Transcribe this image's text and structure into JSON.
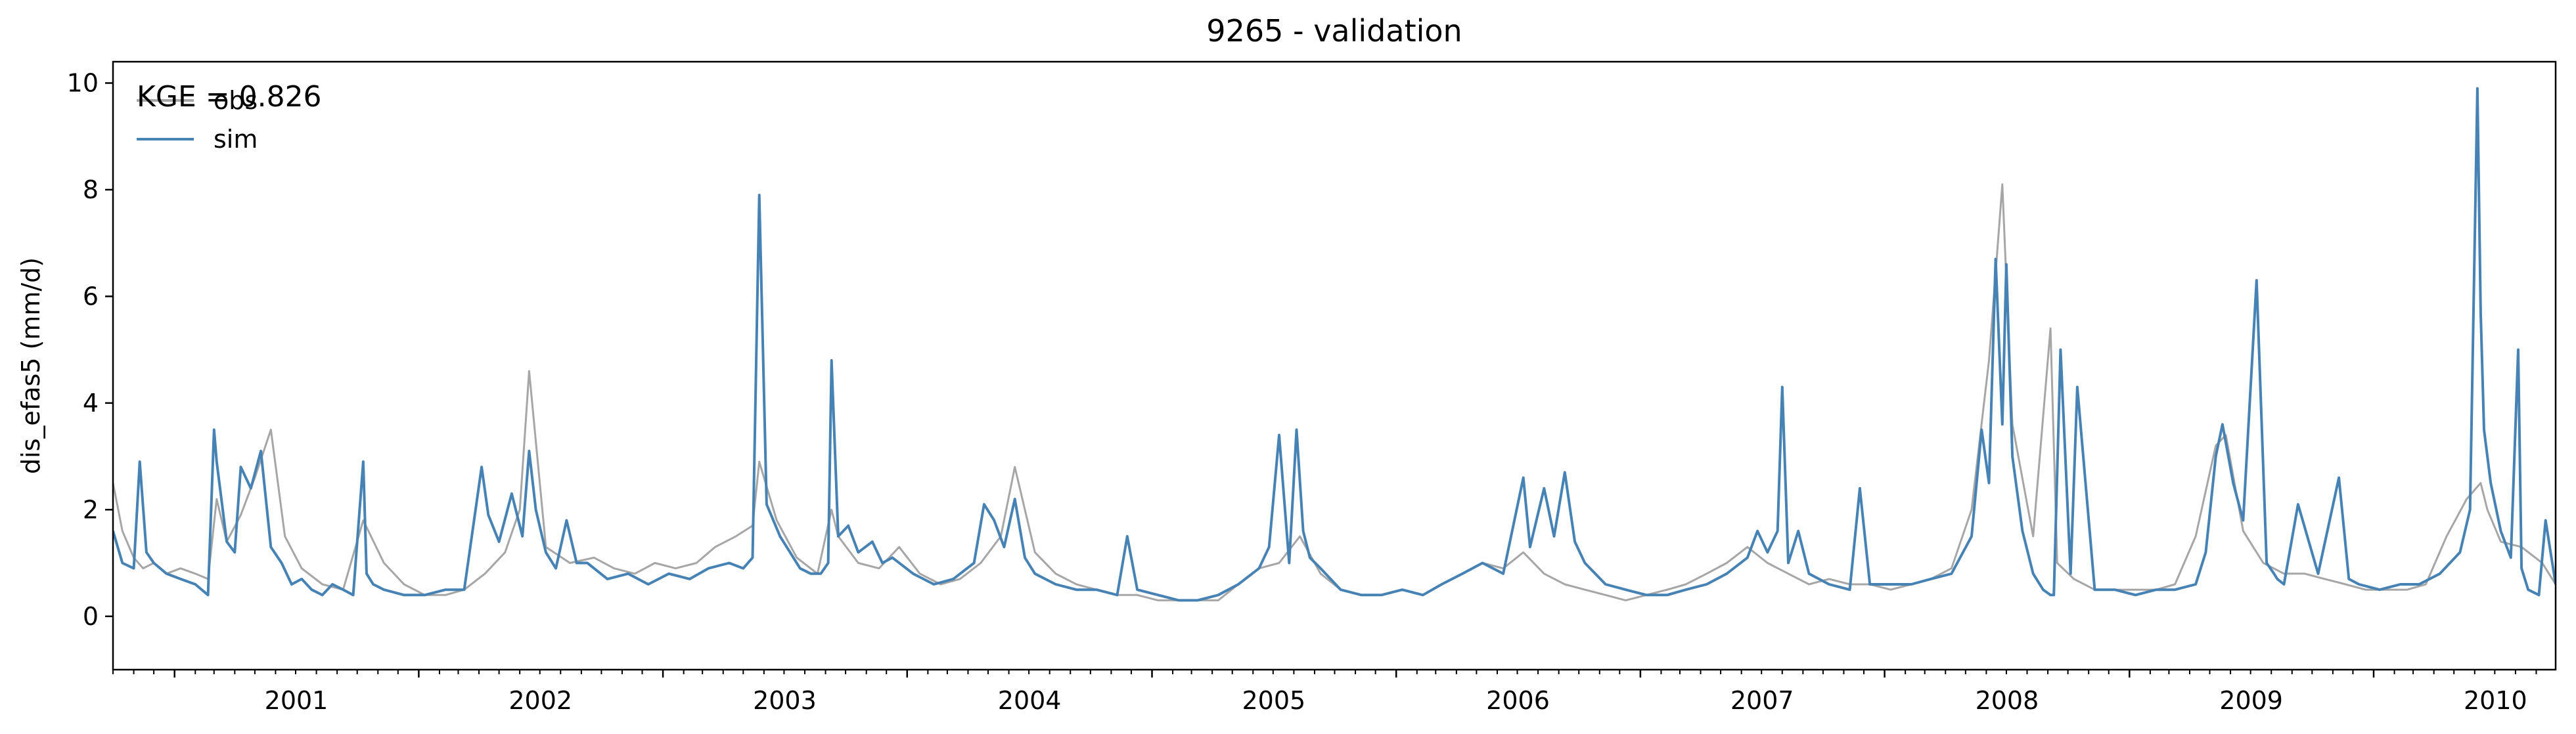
{
  "chart_data": {
    "type": "line",
    "title": "9265 - validation",
    "xlabel": "",
    "ylabel": "dis_efas5 (mm/d)",
    "xlim": [
      "2000-10-01",
      "2010-09-30"
    ],
    "ylim": [
      -1,
      10.4
    ],
    "yticks": [
      0,
      2,
      4,
      6,
      8,
      10
    ],
    "ytick_labels": [
      "0",
      "2",
      "4",
      "6",
      "8",
      "10"
    ],
    "xticks": [
      "2001",
      "2002",
      "2003",
      "2004",
      "2005",
      "2006",
      "2007",
      "2008",
      "2009",
      "2010"
    ],
    "grid": false,
    "legend": {
      "position": "top-left"
    },
    "annotation": "KGE = 0.826",
    "series": [
      {
        "name": "obs",
        "color": "#a6a6a6",
        "x": [
          "2000-10-01",
          "2000-10-15",
          "2000-11-01",
          "2000-11-15",
          "2000-12-01",
          "2000-12-20",
          "2001-01-10",
          "2001-02-01",
          "2001-02-20",
          "2001-03-05",
          "2001-03-20",
          "2001-04-10",
          "2001-05-01",
          "2001-05-25",
          "2001-06-15",
          "2001-07-10",
          "2001-08-10",
          "2001-09-10",
          "2001-10-10",
          "2001-11-10",
          "2001-12-10",
          "2002-01-10",
          "2002-02-10",
          "2002-03-10",
          "2002-04-10",
          "2002-05-10",
          "2002-06-01",
          "2002-06-15",
          "2002-07-10",
          "2002-08-15",
          "2002-09-20",
          "2002-10-20",
          "2002-11-20",
          "2002-12-20",
          "2003-01-20",
          "2003-02-20",
          "2003-03-20",
          "2003-04-20",
          "2003-05-15",
          "2003-05-25",
          "2003-06-20",
          "2003-07-20",
          "2003-08-20",
          "2003-09-10",
          "2003-09-20",
          "2003-10-20",
          "2003-11-20",
          "2003-12-20",
          "2004-01-20",
          "2004-02-20",
          "2004-03-20",
          "2004-04-20",
          "2004-05-20",
          "2004-06-10",
          "2004-07-10",
          "2004-08-10",
          "2004-09-10",
          "2004-10-10",
          "2004-11-10",
          "2004-12-10",
          "2005-01-10",
          "2005-02-10",
          "2005-03-10",
          "2005-04-10",
          "2005-05-10",
          "2005-06-10",
          "2005-07-10",
          "2005-08-10",
          "2005-09-10",
          "2005-10-10",
          "2005-11-10",
          "2005-12-10",
          "2006-01-10",
          "2006-02-10",
          "2006-03-10",
          "2006-04-10",
          "2006-05-10",
          "2006-06-10",
          "2006-07-10",
          "2006-08-10",
          "2006-09-10",
          "2006-10-10",
          "2006-11-10",
          "2006-12-10",
          "2007-01-10",
          "2007-02-10",
          "2007-03-10",
          "2007-04-10",
          "2007-05-10",
          "2007-06-10",
          "2007-07-10",
          "2007-08-10",
          "2007-09-10",
          "2007-10-10",
          "2007-11-10",
          "2007-12-10",
          "2008-01-10",
          "2008-02-10",
          "2008-03-10",
          "2008-04-10",
          "2008-05-10",
          "2008-06-05",
          "2008-06-25",
          "2008-07-10",
          "2008-08-10",
          "2008-09-05",
          "2008-09-15",
          "2008-10-10",
          "2008-11-10",
          "2008-12-10",
          "2009-01-10",
          "2009-02-10",
          "2009-03-10",
          "2009-04-10",
          "2009-05-10",
          "2009-05-25",
          "2009-06-20",
          "2009-07-20",
          "2009-08-20",
          "2009-09-20",
          "2009-10-20",
          "2009-11-20",
          "2009-12-20",
          "2010-01-20",
          "2010-02-20",
          "2010-03-20",
          "2010-04-20",
          "2010-05-20",
          "2010-06-10",
          "2010-06-20",
          "2010-07-10",
          "2010-08-10",
          "2010-09-10",
          "2010-09-30"
        ],
        "y": [
          2.5,
          1.6,
          1.1,
          0.9,
          1.0,
          0.8,
          0.9,
          0.8,
          0.7,
          2.2,
          1.4,
          1.9,
          2.6,
          3.5,
          1.5,
          0.9,
          0.6,
          0.5,
          1.8,
          1.0,
          0.6,
          0.4,
          0.4,
          0.5,
          0.8,
          1.2,
          2.0,
          4.6,
          1.3,
          1.0,
          1.1,
          0.9,
          0.8,
          1.0,
          0.9,
          1.0,
          1.3,
          1.5,
          1.7,
          2.9,
          1.8,
          1.1,
          0.8,
          2.0,
          1.5,
          1.0,
          0.9,
          1.3,
          0.8,
          0.6,
          0.7,
          1.0,
          1.5,
          2.8,
          1.2,
          0.8,
          0.6,
          0.5,
          0.4,
          0.4,
          0.3,
          0.3,
          0.3,
          0.3,
          0.6,
          0.9,
          1.0,
          1.5,
          0.8,
          0.5,
          0.4,
          0.4,
          0.5,
          0.4,
          0.6,
          0.8,
          1.0,
          0.9,
          1.2,
          0.8,
          0.6,
          0.5,
          0.4,
          0.3,
          0.4,
          0.5,
          0.6,
          0.8,
          1.0,
          1.3,
          1.0,
          0.8,
          0.6,
          0.7,
          0.6,
          0.6,
          0.5,
          0.6,
          0.7,
          0.9,
          2.0,
          4.8,
          8.1,
          3.6,
          1.5,
          5.4,
          1.0,
          0.7,
          0.5,
          0.5,
          0.5,
          0.5,
          0.6,
          1.5,
          3.2,
          3.4,
          1.6,
          1.0,
          0.8,
          0.8,
          0.7,
          0.6,
          0.5,
          0.5,
          0.5,
          0.6,
          1.5,
          2.2,
          2.5,
          2.0,
          1.4,
          1.3,
          1.0,
          0.6
        ]
      },
      {
        "name": "sim",
        "color": "#4682b4",
        "x": [
          "2000-10-01",
          "2000-10-15",
          "2000-11-01",
          "2000-11-10",
          "2000-11-20",
          "2000-12-01",
          "2000-12-20",
          "2001-01-10",
          "2001-02-01",
          "2001-02-20",
          "2001-03-01",
          "2001-03-05",
          "2001-03-12",
          "2001-03-20",
          "2001-04-01",
          "2001-04-10",
          "2001-04-25",
          "2001-05-10",
          "2001-05-25",
          "2001-06-10",
          "2001-06-25",
          "2001-07-10",
          "2001-07-25",
          "2001-08-10",
          "2001-08-25",
          "2001-09-10",
          "2001-09-25",
          "2001-10-10",
          "2001-10-15",
          "2001-10-25",
          "2001-11-10",
          "2001-12-10",
          "2002-01-10",
          "2002-02-10",
          "2002-03-10",
          "2002-04-05",
          "2002-04-15",
          "2002-05-01",
          "2002-05-20",
          "2002-06-05",
          "2002-06-15",
          "2002-06-25",
          "2002-07-10",
          "2002-07-25",
          "2002-08-10",
          "2002-08-25",
          "2002-09-10",
          "2002-10-10",
          "2002-11-10",
          "2002-12-10",
          "2003-01-10",
          "2003-02-10",
          "2003-03-10",
          "2003-04-10",
          "2003-05-01",
          "2003-05-15",
          "2003-05-25",
          "2003-06-05",
          "2003-06-25",
          "2003-07-10",
          "2003-07-25",
          "2003-08-10",
          "2003-08-25",
          "2003-09-05",
          "2003-09-10",
          "2003-09-20",
          "2003-10-05",
          "2003-10-20",
          "2003-11-10",
          "2003-11-25",
          "2003-12-10",
          "2004-01-10",
          "2004-02-10",
          "2004-03-10",
          "2004-04-10",
          "2004-04-25",
          "2004-05-10",
          "2004-05-25",
          "2004-06-10",
          "2004-06-25",
          "2004-07-10",
          "2004-08-10",
          "2004-09-10",
          "2004-10-10",
          "2004-11-10",
          "2004-11-25",
          "2004-12-10",
          "2005-01-10",
          "2005-02-10",
          "2005-03-10",
          "2005-04-10",
          "2005-05-10",
          "2005-06-10",
          "2005-06-25",
          "2005-07-10",
          "2005-07-25",
          "2005-08-05",
          "2005-08-15",
          "2005-08-25",
          "2005-09-10",
          "2005-10-10",
          "2005-11-10",
          "2005-12-10",
          "2006-01-10",
          "2006-02-10",
          "2006-03-10",
          "2006-04-10",
          "2006-05-10",
          "2006-06-10",
          "2006-07-10",
          "2006-07-20",
          "2006-08-10",
          "2006-08-25",
          "2006-09-10",
          "2006-09-25",
          "2006-10-10",
          "2006-11-10",
          "2006-12-10",
          "2007-01-10",
          "2007-02-10",
          "2007-03-10",
          "2007-04-10",
          "2007-05-10",
          "2007-06-10",
          "2007-06-25",
          "2007-07-10",
          "2007-07-25",
          "2007-08-01",
          "2007-08-10",
          "2007-08-25",
          "2007-09-10",
          "2007-10-10",
          "2007-11-10",
          "2007-11-25",
          "2007-12-10",
          "2008-01-10",
          "2008-02-10",
          "2008-03-10",
          "2008-04-10",
          "2008-05-10",
          "2008-05-25",
          "2008-06-05",
          "2008-06-15",
          "2008-06-25",
          "2008-07-01",
          "2008-07-10",
          "2008-07-25",
          "2008-08-10",
          "2008-08-25",
          "2008-09-05",
          "2008-09-10",
          "2008-09-20",
          "2008-10-05",
          "2008-10-15",
          "2008-11-10",
          "2008-12-10",
          "2009-01-10",
          "2009-02-10",
          "2009-03-10",
          "2009-04-10",
          "2009-04-25",
          "2009-05-10",
          "2009-05-20",
          "2009-06-05",
          "2009-06-20",
          "2009-07-10",
          "2009-07-25",
          "2009-08-05",
          "2009-08-10",
          "2009-08-20",
          "2009-09-10",
          "2009-10-10",
          "2009-11-10",
          "2009-11-25",
          "2009-12-10",
          "2010-01-10",
          "2010-02-10",
          "2010-03-10",
          "2010-04-10",
          "2010-05-10",
          "2010-05-25",
          "2010-06-05",
          "2010-06-10",
          "2010-06-15",
          "2010-06-25",
          "2010-07-10",
          "2010-07-25",
          "2010-08-05",
          "2010-08-10",
          "2010-08-20",
          "2010-09-05",
          "2010-09-15",
          "2010-09-30"
        ],
        "y": [
          1.6,
          1.0,
          0.9,
          2.9,
          1.2,
          1.0,
          0.8,
          0.7,
          0.6,
          0.4,
          3.5,
          2.9,
          2.2,
          1.4,
          1.2,
          2.8,
          2.4,
          3.1,
          1.3,
          1.0,
          0.6,
          0.7,
          0.5,
          0.4,
          0.6,
          0.5,
          0.4,
          2.9,
          0.8,
          0.6,
          0.5,
          0.4,
          0.4,
          0.5,
          0.5,
          2.8,
          1.9,
          1.4,
          2.3,
          1.5,
          3.1,
          2.0,
          1.2,
          0.9,
          1.8,
          1.0,
          1.0,
          0.7,
          0.8,
          0.6,
          0.8,
          0.7,
          0.9,
          1.0,
          0.9,
          1.1,
          7.9,
          2.1,
          1.5,
          1.2,
          0.9,
          0.8,
          0.8,
          1.0,
          4.8,
          1.5,
          1.7,
          1.2,
          1.4,
          1.0,
          1.1,
          0.8,
          0.6,
          0.7,
          1.0,
          2.1,
          1.8,
          1.3,
          2.2,
          1.1,
          0.8,
          0.6,
          0.5,
          0.5,
          0.4,
          1.5,
          0.5,
          0.4,
          0.3,
          0.3,
          0.4,
          0.6,
          0.9,
          1.3,
          3.4,
          1.0,
          3.5,
          1.6,
          1.1,
          0.9,
          0.5,
          0.4,
          0.4,
          0.5,
          0.4,
          0.6,
          0.8,
          1.0,
          0.8,
          2.6,
          1.3,
          2.4,
          1.5,
          2.7,
          1.4,
          1.0,
          0.6,
          0.5,
          0.4,
          0.4,
          0.5,
          0.6,
          0.8,
          1.1,
          1.6,
          1.2,
          1.6,
          4.3,
          1.0,
          1.6,
          0.8,
          0.6,
          0.5,
          2.4,
          0.6,
          0.6,
          0.6,
          0.7,
          0.8,
          1.5,
          3.5,
          2.5,
          6.7,
          3.6,
          6.6,
          3.0,
          1.6,
          0.8,
          0.5,
          0.4,
          0.4,
          5.0,
          0.8,
          4.3,
          0.5,
          0.5,
          0.4,
          0.5,
          0.5,
          0.6,
          1.2,
          3.0,
          3.6,
          2.5,
          1.8,
          6.3,
          1.0,
          0.8,
          0.7,
          0.6,
          2.1,
          0.8,
          2.6,
          0.7,
          0.6,
          0.5,
          0.6,
          0.6,
          0.8,
          1.2,
          2.0,
          9.9,
          5.7,
          3.5,
          2.5,
          1.6,
          1.1,
          5.0,
          0.9,
          0.5,
          0.4,
          1.8,
          0.6
        ]
      }
    ]
  }
}
